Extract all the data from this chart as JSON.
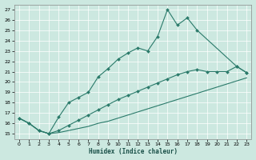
{
  "xlabel": "Humidex (Indice chaleur)",
  "bg_color": "#cce8e0",
  "line_color": "#2a7a6a",
  "grid_color": "#b0d8d0",
  "xlim": [
    -0.5,
    23.5
  ],
  "ylim": [
    14.5,
    27.5
  ],
  "yticks": [
    15,
    16,
    17,
    18,
    19,
    20,
    21,
    22,
    23,
    24,
    25,
    26,
    27
  ],
  "xticks": [
    0,
    1,
    2,
    3,
    4,
    5,
    6,
    7,
    8,
    9,
    10,
    11,
    12,
    13,
    14,
    15,
    16,
    17,
    18,
    19,
    20,
    21,
    22,
    23
  ],
  "line1_x": [
    0,
    1,
    2,
    3,
    4,
    5,
    6,
    7,
    8,
    9,
    10,
    11,
    12,
    13,
    14,
    15,
    16,
    17,
    18,
    22,
    23
  ],
  "line1_y": [
    16.5,
    16.0,
    15.3,
    15.0,
    16.6,
    18.0,
    18.5,
    19.0,
    20.5,
    21.3,
    22.2,
    22.8,
    23.3,
    23.0,
    24.4,
    27.0,
    25.5,
    26.2,
    25.0,
    21.5,
    20.9
  ],
  "line2_x": [
    0,
    1,
    2,
    3,
    4,
    5,
    6,
    7,
    8,
    9,
    10,
    11,
    12,
    13,
    14,
    15,
    16,
    17,
    18,
    19,
    20,
    21,
    22,
    23
  ],
  "line2_y": [
    16.5,
    16.0,
    15.3,
    15.0,
    15.3,
    15.8,
    16.3,
    16.8,
    17.3,
    17.8,
    18.3,
    18.7,
    19.1,
    19.5,
    19.9,
    20.3,
    20.7,
    21.0,
    21.2,
    21.0,
    21.0,
    21.0,
    21.5,
    20.9
  ],
  "line3_x": [
    0,
    1,
    2,
    3,
    4,
    5,
    6,
    7,
    8,
    9,
    10,
    11,
    12,
    13,
    14,
    15,
    16,
    17,
    18,
    19,
    20,
    21,
    22,
    23
  ],
  "line3_y": [
    16.5,
    16.0,
    15.3,
    15.0,
    15.1,
    15.3,
    15.5,
    15.7,
    16.0,
    16.2,
    16.5,
    16.8,
    17.1,
    17.4,
    17.7,
    18.0,
    18.3,
    18.6,
    18.9,
    19.2,
    19.5,
    19.8,
    20.1,
    20.4
  ]
}
